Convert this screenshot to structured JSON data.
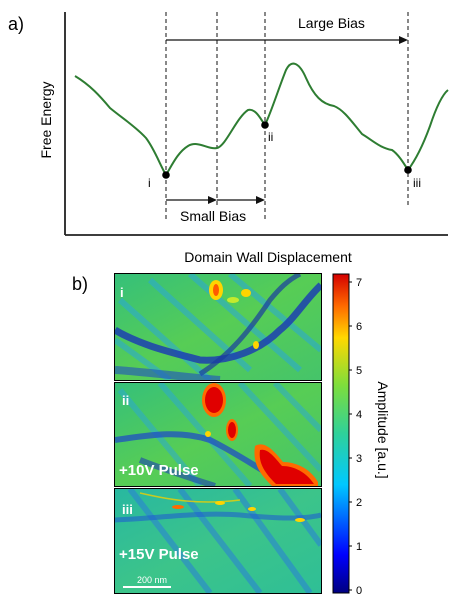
{
  "panel_a": {
    "panel_label": "a)",
    "ylabel": "Free Energy",
    "xlabel": "Domain Wall Displacement",
    "large_bias": "Large Bias",
    "small_bias": "Small Bias",
    "states": [
      "i",
      "ii",
      "iii"
    ],
    "curve_color": "#2e7d32"
  },
  "panel_b": {
    "panel_label": "b)",
    "maps": [
      {
        "tag": "i",
        "pulse": ""
      },
      {
        "tag": "ii",
        "pulse": "+10V Pulse"
      },
      {
        "tag": "iii",
        "pulse": "+15V Pulse"
      }
    ],
    "scalebar": "200 nm",
    "colorbar": {
      "label": "Amplitude [a.u.]",
      "ticks": [
        "7",
        "6",
        "5",
        "4",
        "3",
        "2",
        "1",
        "0"
      ],
      "colormap": "jet",
      "range": [
        0,
        7
      ]
    }
  }
}
